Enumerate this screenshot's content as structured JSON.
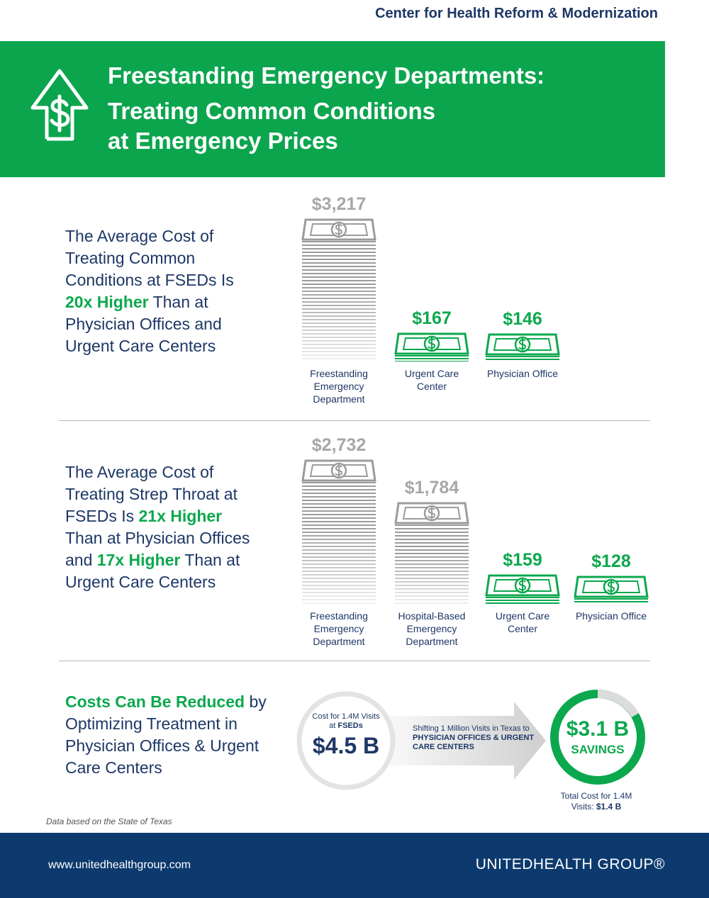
{
  "header": {
    "organization": "Center for Health Reform & Modernization",
    "title_lines": [
      "Freestanding Emergency Departments:",
      "Treating Common Conditions",
      "at Emergency Prices"
    ]
  },
  "sections": [
    {
      "heading": [
        {
          "text": "The Average Cost of Treating Common Conditions at FSEDs Is "
        },
        {
          "text": "20x Higher",
          "emphasis": true
        },
        {
          "text": " Than at Physician Offices and Urgent Care Centers"
        }
      ]
    },
    {
      "heading": [
        {
          "text": "The Average Cost of Treating Strep Throat at FSEDs Is "
        },
        {
          "text": "21x Higher",
          "emphasis": true
        },
        {
          "text": " Than at Physician Offices and "
        },
        {
          "text": "17x Higher",
          "emphasis": true
        },
        {
          "text": " Than at Urgent Care Centers"
        }
      ]
    },
    {
      "heading": [
        {
          "text": "Costs Can Be Reduced",
          "emphasis": true
        },
        {
          "text": " by Optimizing Treatment in Physician Offices & Urgent Care Centers"
        }
      ]
    }
  ],
  "chart_data": [
    {
      "type": "bar",
      "categories": [
        "Freestanding Emergency Department",
        "Urgent Care Center",
        "Physician Office"
      ],
      "values": [
        3217,
        167,
        146
      ],
      "value_labels": [
        "$3,217",
        "$167",
        "$146"
      ],
      "colors": [
        "#9b9b9b",
        "#0ca84e",
        "#0ca84e"
      ]
    },
    {
      "type": "bar",
      "categories": [
        "Freestanding Emergency Department",
        "Hospital-Based Emergency Department",
        "Urgent Care Center",
        "Physician Office"
      ],
      "values": [
        2732,
        1784,
        159,
        128
      ],
      "value_labels": [
        "$2,732",
        "$1,784",
        "$159",
        "$128"
      ],
      "colors": [
        "#9b9b9b",
        "#9b9b9b",
        "#0ca84e",
        "#0ca84e"
      ]
    }
  ],
  "savings": {
    "before": {
      "caption": [
        {
          "text": "Cost for 1.4M Visits at "
        },
        {
          "text": "FSEDs",
          "bold": true
        }
      ],
      "amount": "$4.5 B"
    },
    "shift": [
      {
        "text": "Shifting 1 Million Visits in Texas to "
      },
      {
        "text": "PHYSICIAN OFFICES & URGENT CARE CENTERS",
        "bold": true
      }
    ],
    "after": {
      "amount": "$3.1 B",
      "label": "SAVINGS",
      "caption": [
        {
          "text": "Total Cost for 1.4M Visits: "
        },
        {
          "text": "$1.4 B",
          "bold": true
        }
      ]
    }
  },
  "note": "Data based on the State of Texas",
  "footer": {
    "url": "www.unitedhealthgroup.com",
    "logo": "UNITEDHEALTH GROUP®"
  }
}
